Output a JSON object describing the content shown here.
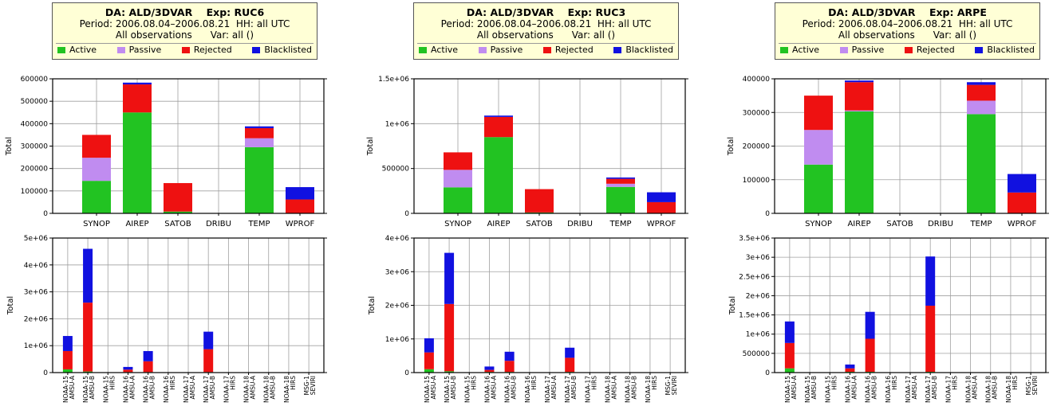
{
  "colors": {
    "active": "#22c322",
    "passive": "#c08cf0",
    "rejected": "#ee1111",
    "blacklisted": "#1111e0",
    "header_bg": "#ffffd6"
  },
  "panels": [
    {
      "header": {
        "line1": "DA: ALD/3DVAR    Exp: RUC6",
        "line2": "Period: 2006.08.04–2006.08.21  HH: all UTC",
        "line3": "All observations      Var: all ()",
        "legend": [
          "Active",
          "Passive",
          "Rejected",
          "Blacklisted"
        ]
      },
      "charts": [
        {
          "type": "bar",
          "ylabel": "Total",
          "ylim": [
            0,
            600000
          ],
          "yticks": [
            0,
            100000,
            200000,
            300000,
            400000,
            500000,
            600000
          ],
          "ytick_labels": [
            "0",
            "100000",
            "200000",
            "300000",
            "400000",
            "500000",
            "600000"
          ],
          "categories": [
            "SYNOP",
            "AIREP",
            "SATOB",
            "DRIBU",
            "TEMP",
            "WPROF"
          ],
          "series": [
            {
              "name": "Active",
              "values": [
                145000,
                450000,
                8000,
                0,
                295000,
                0
              ]
            },
            {
              "name": "Passive",
              "values": [
                103000,
                0,
                0,
                0,
                40000,
                0
              ]
            },
            {
              "name": "Rejected",
              "values": [
                102000,
                125000,
                127000,
                0,
                45000,
                62000
              ]
            },
            {
              "name": "Blacklisted",
              "values": [
                0,
                8000,
                0,
                0,
                8000,
                55000
              ]
            }
          ]
        },
        {
          "type": "bar",
          "ylabel": "Total",
          "ylim": [
            0,
            5000000
          ],
          "yticks": [
            0,
            1000000,
            2000000,
            3000000,
            4000000,
            5000000
          ],
          "ytick_labels": [
            "0",
            "1e+06",
            "2e+06",
            "3e+06",
            "4e+06",
            "5e+06"
          ],
          "categories": [
            "NOAA-15 AMSU-A",
            "NOAA-15 AMSU-B",
            "NOAA-15 HIRS",
            "NOAA-16 AMSU-A",
            "NOAA-16 AMSU-B",
            "NOAA-16 HIRS",
            "NOAA-17 AMSU-A",
            "NOAA-17 AMSU-B",
            "NOAA-17 HIRS",
            "NOAA-18 AMSU-A",
            "NOAA-18 AMSU-B",
            "NOAA-18 HIRS",
            "MSG-1 SEVIRI"
          ],
          "series": [
            {
              "name": "Active",
              "values": [
                120000,
                40000,
                0,
                20000,
                20000,
                0,
                0,
                20000,
                0,
                0,
                0,
                0,
                0
              ]
            },
            {
              "name": "Passive",
              "values": [
                0,
                0,
                0,
                0,
                0,
                0,
                0,
                0,
                0,
                0,
                0,
                0,
                0
              ]
            },
            {
              "name": "Rejected",
              "values": [
                680000,
                2560000,
                0,
                90000,
                400000,
                0,
                0,
                850000,
                0,
                0,
                0,
                0,
                0
              ]
            },
            {
              "name": "Blacklisted",
              "values": [
                560000,
                2000000,
                0,
                100000,
                380000,
                0,
                0,
                650000,
                0,
                0,
                0,
                0,
                0
              ]
            }
          ]
        }
      ]
    },
    {
      "header": {
        "line1": "DA: ALD/3DVAR    Exp: RUC3",
        "line2": "Period: 2006.08.04–2006.08.21  HH: all UTC",
        "line3": "All observations      Var: all ()",
        "legend": [
          "Active",
          "Passive",
          "Rejected",
          "Blacklisted"
        ]
      },
      "charts": [
        {
          "type": "bar",
          "ylabel": "Total",
          "ylim": [
            0,
            1500000
          ],
          "yticks": [
            0,
            500000,
            1000000,
            1500000
          ],
          "ytick_labels": [
            "0",
            "500000",
            "1e+06",
            "1.5e+06"
          ],
          "categories": [
            "SYNOP",
            "AIREP",
            "SATOB",
            "DRIBU",
            "TEMP",
            "WPROF"
          ],
          "series": [
            {
              "name": "Active",
              "values": [
                290000,
                850000,
                10000,
                0,
                295000,
                0
              ]
            },
            {
              "name": "Passive",
              "values": [
                195000,
                0,
                0,
                0,
                35000,
                0
              ]
            },
            {
              "name": "Rejected",
              "values": [
                195000,
                225000,
                260000,
                0,
                55000,
                125000
              ]
            },
            {
              "name": "Blacklisted",
              "values": [
                0,
                15000,
                0,
                0,
                15000,
                110000
              ]
            }
          ]
        },
        {
          "type": "bar",
          "ylabel": "Total",
          "ylim": [
            0,
            4000000
          ],
          "yticks": [
            0,
            1000000,
            2000000,
            3000000,
            4000000
          ],
          "ytick_labels": [
            "0",
            "1e+06",
            "2e+06",
            "3e+06",
            "4e+06"
          ],
          "categories": [
            "NOAA-15 AMSU-A",
            "NOAA-15 AMSU-B",
            "NOAA-15 HIRS",
            "NOAA-16 AMSU-A",
            "NOAA-16 AMSU-B",
            "NOAA-16 HIRS",
            "NOAA-17 AMSU-A",
            "NOAA-17 AMSU-B",
            "NOAA-17 HIRS",
            "NOAA-18 AMSU-A",
            "NOAA-18 AMSU-B",
            "NOAA-18 HIRS",
            "MSG-1 SEVIRI"
          ],
          "series": [
            {
              "name": "Active",
              "values": [
                100000,
                40000,
                0,
                20000,
                20000,
                0,
                0,
                20000,
                0,
                0,
                0,
                0,
                0
              ]
            },
            {
              "name": "Passive",
              "values": [
                0,
                0,
                0,
                0,
                0,
                0,
                0,
                0,
                0,
                0,
                0,
                0,
                0
              ]
            },
            {
              "name": "Rejected",
              "values": [
                500000,
                2000000,
                0,
                60000,
                330000,
                0,
                0,
                420000,
                0,
                0,
                0,
                0,
                0
              ]
            },
            {
              "name": "Blacklisted",
              "values": [
                420000,
                1520000,
                0,
                100000,
                270000,
                0,
                0,
                300000,
                0,
                0,
                0,
                0,
                0
              ]
            }
          ]
        }
      ]
    },
    {
      "header": {
        "line1": "DA: ALD/3DVAR    Exp: ARPE",
        "line2": "Period: 2006.08.04–2006.08.21  HH: all UTC",
        "line3": "All observations      Var: all ()",
        "legend": [
          "Active",
          "Passive",
          "Rejected",
          "Blacklisted"
        ]
      },
      "charts": [
        {
          "type": "bar",
          "ylabel": "Total",
          "ylim": [
            0,
            400000
          ],
          "yticks": [
            0,
            100000,
            200000,
            300000,
            400000
          ],
          "ytick_labels": [
            "0",
            "100000",
            "200000",
            "300000",
            "400000"
          ],
          "categories": [
            "SYNOP",
            "AIREP",
            "SATOB",
            "DRIBU",
            "TEMP",
            "WPROF"
          ],
          "series": [
            {
              "name": "Active",
              "values": [
                145000,
                303000,
                0,
                0,
                295000,
                0
              ]
            },
            {
              "name": "Passive",
              "values": [
                103000,
                3000,
                0,
                0,
                40000,
                0
              ]
            },
            {
              "name": "Rejected",
              "values": [
                102000,
                84000,
                0,
                0,
                47000,
                62000
              ]
            },
            {
              "name": "Blacklisted",
              "values": [
                0,
                5000,
                0,
                0,
                8000,
                55000
              ]
            }
          ]
        },
        {
          "type": "bar",
          "ylabel": "Total",
          "ylim": [
            0,
            3500000
          ],
          "yticks": [
            0,
            500000,
            1000000,
            1500000,
            2000000,
            2500000,
            3000000,
            3500000
          ],
          "ytick_labels": [
            "0",
            "500000",
            "1e+06",
            "1.5e+06",
            "2e+06",
            "2.5e+06",
            "3e+06",
            "3.5e+06"
          ],
          "categories": [
            "NOAA-15 AMSU-A",
            "NOAA-15 AMSU-B",
            "NOAA-15 HIRS",
            "NOAA-16 AMSU-A",
            "NOAA-16 AMSU-B",
            "NOAA-16 HIRS",
            "NOAA-17 AMSU-A",
            "NOAA-17 AMSU-B",
            "NOAA-17 HIRS",
            "NOAA-18 AMSU-A",
            "NOAA-18 AMSU-B",
            "NOAA-18 HIRS",
            "MSG-1 SEVIRI"
          ],
          "series": [
            {
              "name": "Active",
              "values": [
                110000,
                0,
                0,
                20000,
                20000,
                0,
                0,
                20000,
                0,
                0,
                0,
                0,
                0
              ]
            },
            {
              "name": "Passive",
              "values": [
                0,
                0,
                0,
                0,
                0,
                0,
                0,
                0,
                0,
                0,
                0,
                0,
                0
              ]
            },
            {
              "name": "Rejected",
              "values": [
                660000,
                0,
                0,
                90000,
                860000,
                0,
                0,
                1720000,
                0,
                0,
                0,
                0,
                0
              ]
            },
            {
              "name": "Blacklisted",
              "values": [
                560000,
                0,
                0,
                100000,
                700000,
                0,
                0,
                1280000,
                0,
                0,
                0,
                0,
                0
              ]
            }
          ]
        }
      ]
    }
  ]
}
